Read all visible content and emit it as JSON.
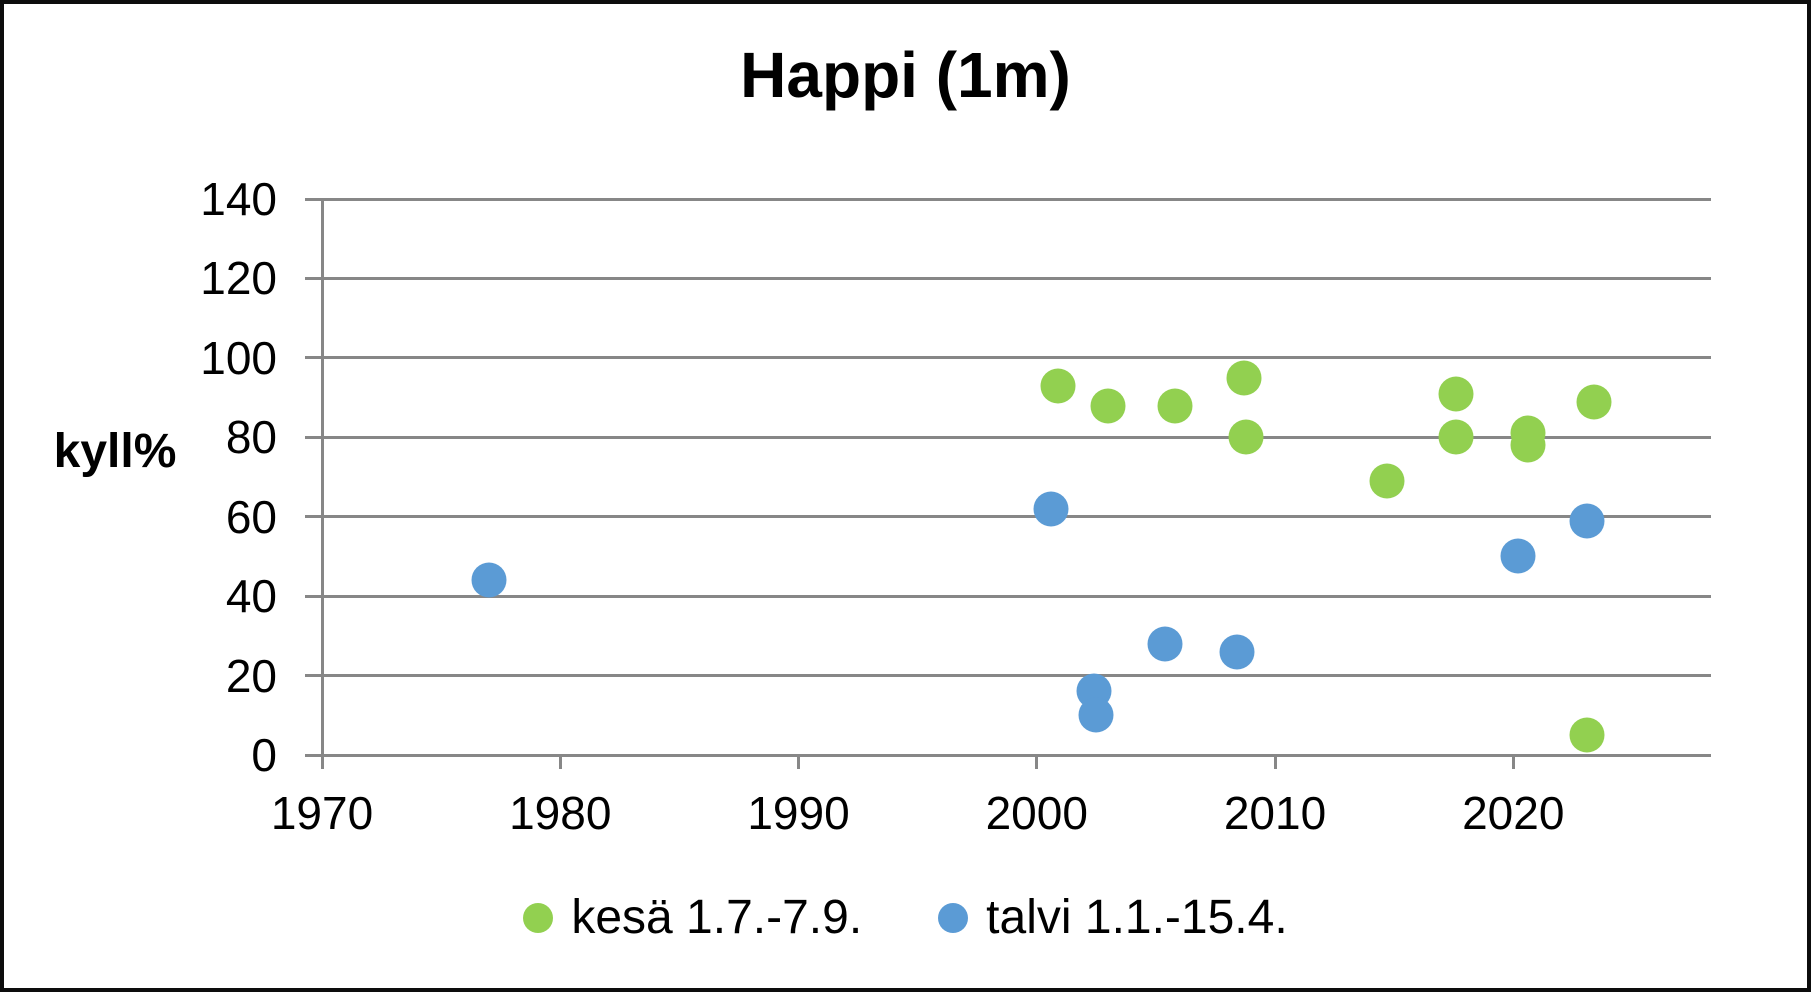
{
  "chart_data": {
    "type": "scatter",
    "title": "Happi (1m)",
    "xlabel": "",
    "ylabel": "kyll%",
    "xlim": [
      1970,
      2028.3
    ],
    "ylim": [
      0,
      140
    ],
    "x_ticks": [
      1970,
      1980,
      1990,
      2000,
      2010,
      2020
    ],
    "y_ticks": [
      0,
      20,
      40,
      60,
      80,
      100,
      120,
      140
    ],
    "grid": "horizontal",
    "legend_position": "bottom-center",
    "series": [
      {
        "key": "kesa",
        "name": "kesä 1.7.-7.9.",
        "color": "#92D050",
        "points": [
          {
            "x": 2000.9,
            "y": 93
          },
          {
            "x": 2003.0,
            "y": 88
          },
          {
            "x": 2005.8,
            "y": 88
          },
          {
            "x": 2008.7,
            "y": 95
          },
          {
            "x": 2008.8,
            "y": 80
          },
          {
            "x": 2014.7,
            "y": 69
          },
          {
            "x": 2017.6,
            "y": 91
          },
          {
            "x": 2017.6,
            "y": 80
          },
          {
            "x": 2020.6,
            "y": 81
          },
          {
            "x": 2020.6,
            "y": 78
          },
          {
            "x": 2023.1,
            "y": 5
          },
          {
            "x": 2023.4,
            "y": 89
          }
        ]
      },
      {
        "key": "talvi",
        "name": "talvi 1.1.-15.4.",
        "color": "#5B9BD5",
        "points": [
          {
            "x": 1977.0,
            "y": 44
          },
          {
            "x": 2000.6,
            "y": 62
          },
          {
            "x": 2002.4,
            "y": 16
          },
          {
            "x": 2002.5,
            "y": 10
          },
          {
            "x": 2005.4,
            "y": 28
          },
          {
            "x": 2008.4,
            "y": 26
          },
          {
            "x": 2020.2,
            "y": 50
          },
          {
            "x": 2023.1,
            "y": 59
          }
        ]
      }
    ],
    "style": {
      "grid_color": "#878787",
      "axis_color": "#878787",
      "text_color": "#000000",
      "background": "#FFFFFF",
      "border_color": "#0D0D0D",
      "marker_diameter_px": 35
    }
  }
}
